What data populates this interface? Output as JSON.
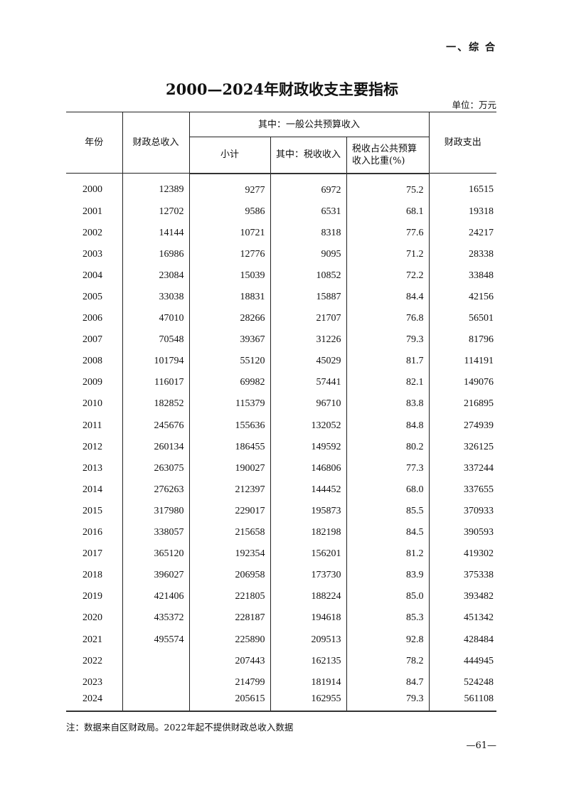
{
  "section": "一、综 合",
  "title": "2000—2024年财政收支主要指标",
  "unit": "单位：万元",
  "headers": {
    "year": "年份",
    "total_revenue": "财政总收入",
    "group": "其中：一般公共预算收入",
    "subtotal": "小计",
    "tax": "其中：税收收入",
    "ratio": "税收占公共预算收入比重(%)",
    "expenditure": "财政支出"
  },
  "rows": [
    [
      "2000",
      "12389",
      "9277",
      "6972",
      "75.2",
      "16515"
    ],
    [
      "2001",
      "12702",
      "9586",
      "6531",
      "68.1",
      "19318"
    ],
    [
      "2002",
      "14144",
      "10721",
      "8318",
      "77.6",
      "24217"
    ],
    [
      "2003",
      "16986",
      "12776",
      "9095",
      "71.2",
      "28338"
    ],
    [
      "2004",
      "23084",
      "15039",
      "10852",
      "72.2",
      "33848"
    ],
    [
      "2005",
      "33038",
      "18831",
      "15887",
      "84.4",
      "42156"
    ],
    [
      "2006",
      "47010",
      "28266",
      "21707",
      "76.8",
      "56501"
    ],
    [
      "2007",
      "70548",
      "39367",
      "31226",
      "79.3",
      "81796"
    ],
    [
      "2008",
      "101794",
      "55120",
      "45029",
      "81.7",
      "114191"
    ],
    [
      "2009",
      "116017",
      "69982",
      "57441",
      "82.1",
      "149076"
    ],
    [
      "2010",
      "182852",
      "115379",
      "96710",
      "83.8",
      "216895"
    ],
    [
      "2011",
      "245676",
      "155636",
      "132052",
      "84.8",
      "274939"
    ],
    [
      "2012",
      "260134",
      "186455",
      "149592",
      "80.2",
      "326125"
    ],
    [
      "2013",
      "263075",
      "190027",
      "146806",
      "77.3",
      "337244"
    ],
    [
      "2014",
      "276263",
      "212397",
      "144452",
      "68.0",
      "337655"
    ],
    [
      "2015",
      "317980",
      "229017",
      "195873",
      "85.5",
      "370933"
    ],
    [
      "2016",
      "338057",
      "215658",
      "182198",
      "84.5",
      "390593"
    ],
    [
      "2017",
      "365120",
      "192354",
      "156201",
      "81.2",
      "419302"
    ],
    [
      "2018",
      "396027",
      "206958",
      "173730",
      "83.9",
      "375338"
    ],
    [
      "2019",
      "421406",
      "221805",
      "188224",
      "85.0",
      "393482"
    ],
    [
      "2020",
      "435372",
      "228187",
      "194618",
      "85.3",
      "451342"
    ],
    [
      "2021",
      "495574",
      "225890",
      "209513",
      "92.8",
      "428484"
    ],
    [
      "2022",
      "",
      "207443",
      "162135",
      "78.2",
      "444945"
    ],
    [
      "2023",
      "",
      "214799",
      "181914",
      "84.7",
      "524248"
    ],
    [
      "2024",
      "",
      "205615",
      "162955",
      "79.3",
      "561108"
    ]
  ],
  "note": "注：数据来自区财政局。2022年起不提供财政总收入数据",
  "page_number": "—61—"
}
